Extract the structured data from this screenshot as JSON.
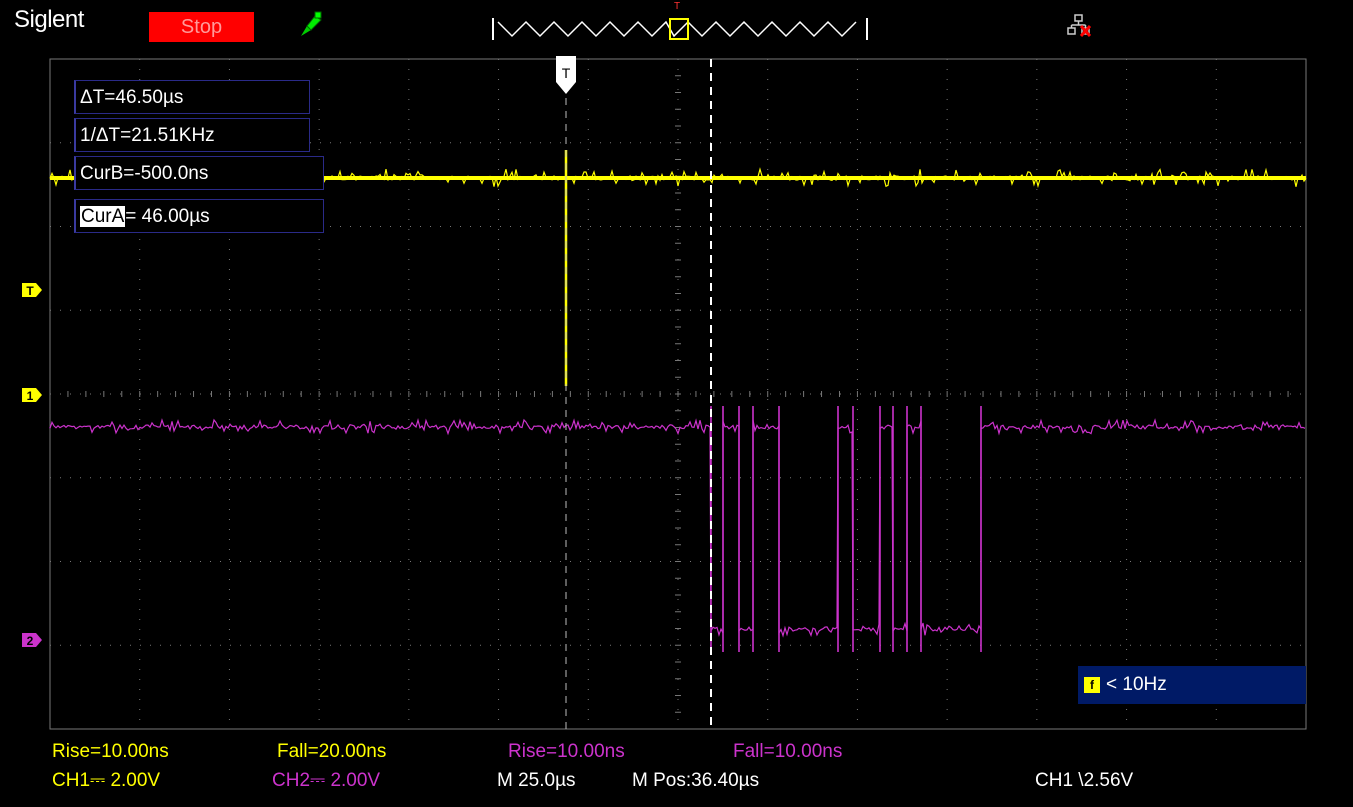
{
  "header": {
    "brand": "Siglent",
    "run_status": "Stop",
    "icons": [
      "probe-icon",
      "network-disconnected-icon"
    ]
  },
  "cursors": {
    "delta_t": "ΔT=46.50µs",
    "inv_delta_t": "1/ΔT=21.51KHz",
    "curb": "CurB=-500.0ns",
    "cura_label": "CurA",
    "cura_value": "= 46.00µs"
  },
  "markers": {
    "trigger_level": "T",
    "ch1": "1",
    "ch2": "2",
    "trigger_pos": "T"
  },
  "frequency": {
    "icon": "f",
    "text": "< 10Hz"
  },
  "measurements": {
    "ch1_rise": "Rise=10.00ns",
    "ch1_fall": "Fall=20.00ns",
    "ch2_rise": "Rise=10.00ns",
    "ch2_fall": "Fall=10.00ns"
  },
  "status": {
    "ch1_scale": "CH1⎓ 2.00V",
    "ch2_scale": "CH2⎓ 2.00V",
    "time_scale": "M 25.0µs",
    "mpos": "M Pos:36.40µs",
    "trigger": "CH1 \\2.56V"
  },
  "colors": {
    "ch1": "#ffff00",
    "ch2": "#cc33cc",
    "run_status_bg": "#ff0000",
    "grid": "#777777",
    "frequency_bg": "#001a66"
  }
}
